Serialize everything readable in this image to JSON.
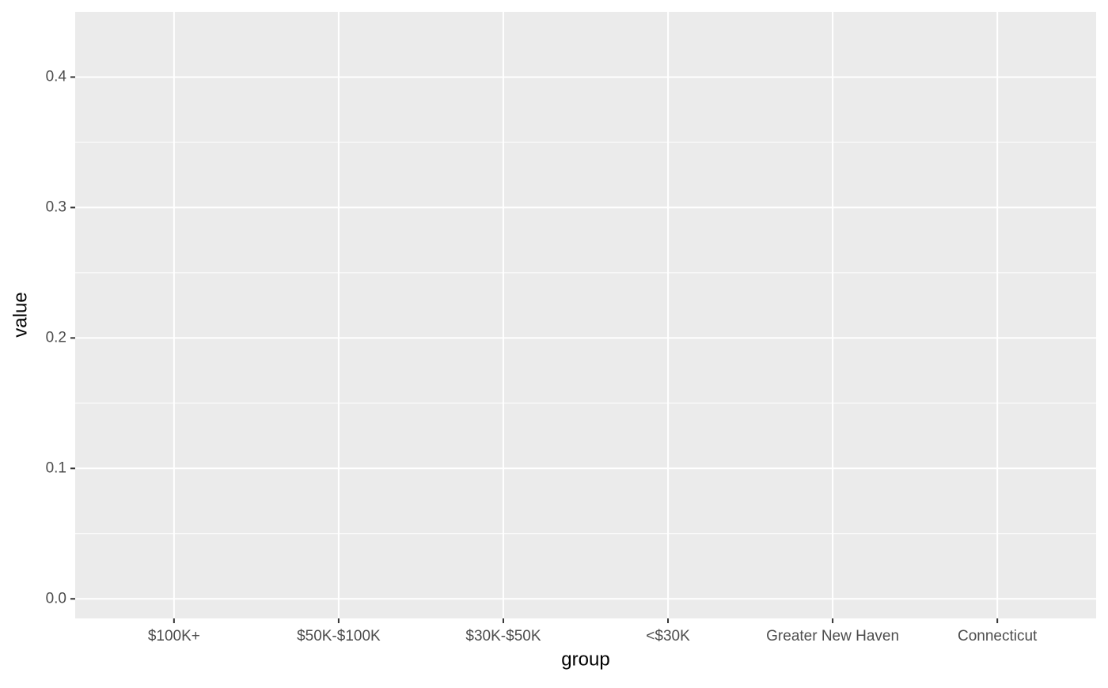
{
  "chart_data": {
    "type": "bar",
    "x_label": "group",
    "y_label": "value",
    "categories": [
      "$100K+",
      "$50K-$100K",
      "$30K-$50K",
      "<$30K",
      "Greater New Haven",
      "Connecticut"
    ],
    "ylim": [
      -0.015,
      0.45
    ],
    "yticks": [
      {
        "value": 0,
        "label": "0.0"
      },
      0.1,
      0.2,
      0.3,
      0.4
    ],
    "grid": true
  }
}
